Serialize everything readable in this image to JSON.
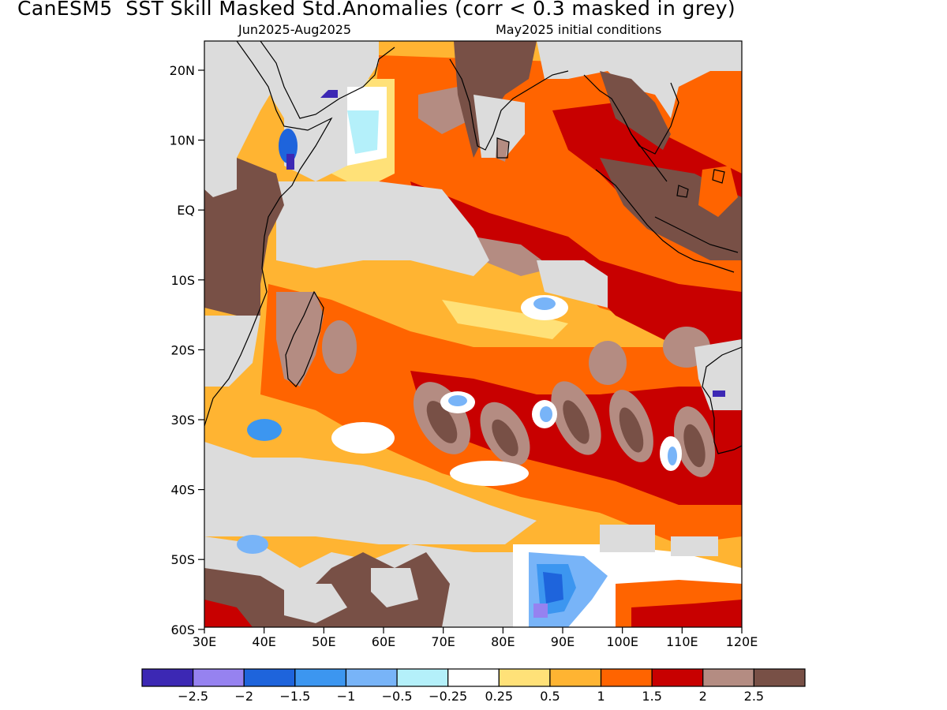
{
  "title": "CanESM5  SST Skill Masked Std.Anomalies (corr < 0.3 masked in grey)",
  "subtitle_left": "Jun2025-Aug2025",
  "subtitle_right": "May2025 initial conditions",
  "map": {
    "region": "Indian Ocean",
    "lon_range": [
      30,
      120
    ],
    "lat_range": [
      -60,
      24
    ],
    "lat_ticks": [
      "20N",
      "10N",
      "EQ",
      "10S",
      "20S",
      "30S",
      "40S",
      "50S",
      "60S"
    ],
    "lon_ticks": [
      "30E",
      "40E",
      "50E",
      "60E",
      "70E",
      "80E",
      "90E",
      "100E",
      "110E",
      "120E"
    ],
    "mask_color": "#dcdcdc"
  },
  "colorbar": {
    "colors": [
      "#3c28b4",
      "#9682f0",
      "#1e64dc",
      "#3c96f0",
      "#78b4f8",
      "#b4f0fa",
      "#ffffff",
      "#ffe178",
      "#ffb432",
      "#ff6400",
      "#c80000",
      "#b48c82",
      "#785046"
    ],
    "labels": [
      "-2.5",
      "-2",
      "-1.5",
      "-1",
      "-0.5",
      "-0.25",
      "0.25",
      "0.5",
      "1",
      "1.5",
      "2",
      "2.5"
    ]
  }
}
